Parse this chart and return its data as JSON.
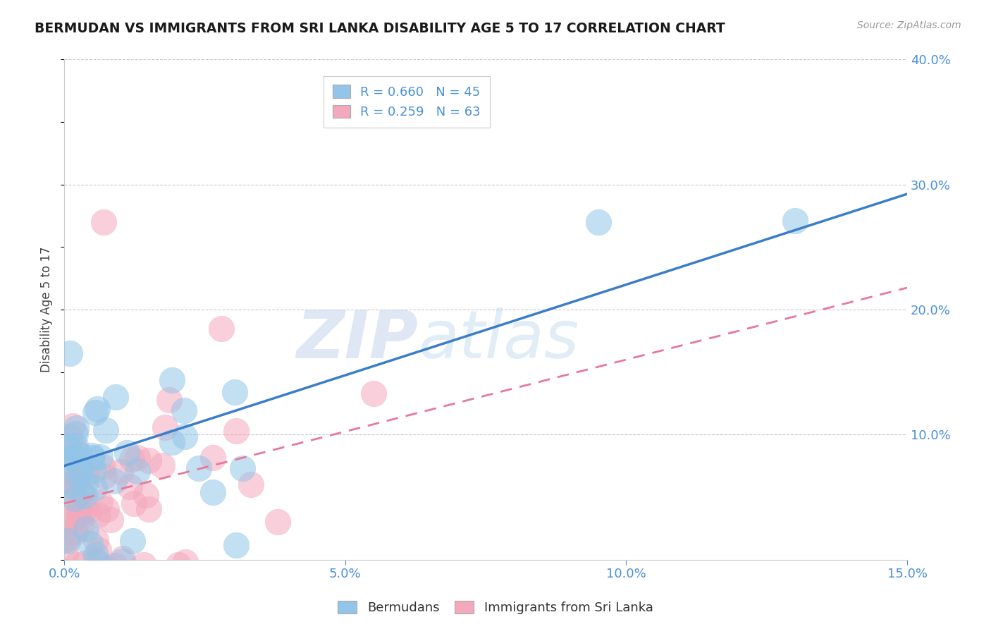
{
  "title": "BERMUDAN VS IMMIGRANTS FROM SRI LANKA DISABILITY AGE 5 TO 17 CORRELATION CHART",
  "source_text": "Source: ZipAtlas.com",
  "ylabel": "Disability Age 5 to 17",
  "xlim": [
    0.0,
    0.15
  ],
  "ylim": [
    0.0,
    0.4
  ],
  "xticks": [
    0.0,
    0.05,
    0.1,
    0.15
  ],
  "xticklabels": [
    "0.0%",
    "5.0%",
    "10.0%",
    "15.0%"
  ],
  "yticks_right": [
    0.1,
    0.2,
    0.3,
    0.4
  ],
  "ytick_right_labels": [
    "10.0%",
    "20.0%",
    "30.0%",
    "40.0%"
  ],
  "watermark_zip": "ZIP",
  "watermark_atlas": "atlas",
  "blue_color": "#92C5E8",
  "pink_color": "#F4A8BC",
  "blue_line_color": "#3A7DC9",
  "pink_line_color": "#E87898",
  "R_blue": 0.66,
  "N_blue": 45,
  "R_pink": 0.259,
  "N_pink": 63,
  "legend_label_blue": "Bermudans",
  "legend_label_pink": "Immigrants from Sri Lanka",
  "title_color": "#1a1a1a",
  "axis_color": "#4A90D9",
  "background_color": "#FFFFFF",
  "blue_line_intercept": 0.075,
  "blue_line_slope": 1.45,
  "pink_line_intercept": 0.045,
  "pink_line_slope": 1.15
}
